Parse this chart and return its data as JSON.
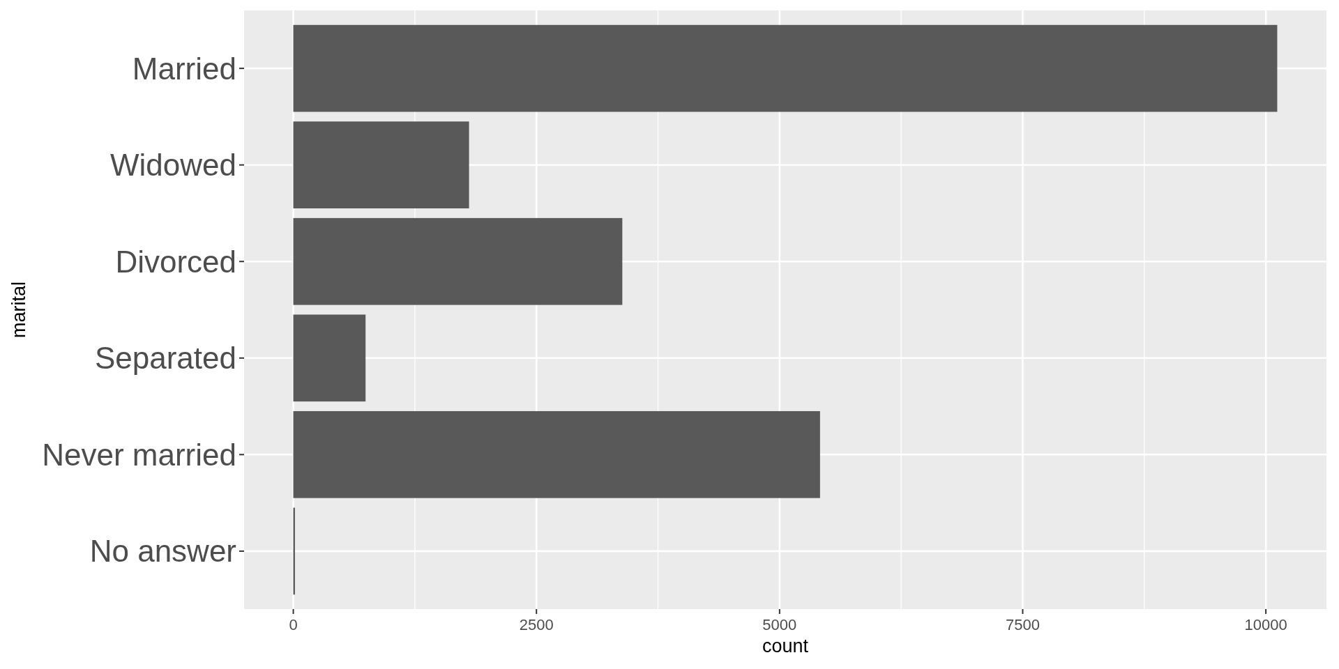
{
  "chart_data": {
    "type": "bar",
    "orientation": "horizontal",
    "categories": [
      "Married",
      "Widowed",
      "Divorced",
      "Separated",
      "Never married",
      "No answer"
    ],
    "values": [
      10117,
      1807,
      3383,
      743,
      5416,
      17
    ],
    "color": "#595959",
    "xlabel": "count",
    "ylabel": "marital",
    "xlim": [
      -506,
      10623
    ],
    "xticks": [
      0,
      2500,
      5000,
      7500,
      10000
    ],
    "grid": true
  }
}
